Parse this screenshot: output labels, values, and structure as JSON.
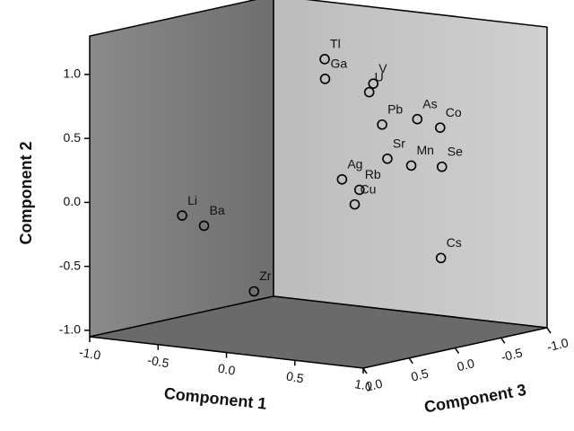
{
  "chart_data": {
    "type": "scatter3d",
    "xlabel": "Component 1",
    "ylabel": "Component 2",
    "zlabel": "Component 3",
    "labels": [
      "Tl",
      "Ga",
      "V",
      "U",
      "Pb",
      "As",
      "Co",
      "Sr",
      "Mn",
      "Se",
      "Ag",
      "Rb",
      "Cu",
      "Cs",
      "Li",
      "Ba",
      "Zr"
    ],
    "x": [
      -0.29,
      -0.22,
      0.2,
      0.17,
      0.13,
      0.32,
      0.42,
      0.37,
      0.41,
      0.5,
      0.24,
      0.3,
      0.4,
      0.56,
      -0.66,
      -0.5,
      0.0
    ],
    "y": [
      0.97,
      0.84,
      0.87,
      0.8,
      0.51,
      0.56,
      0.49,
      0.32,
      0.24,
      0.21,
      0.19,
      0.1,
      0.03,
      -0.48,
      -0.14,
      -0.2,
      -0.62
    ],
    "z": [
      -0.5,
      -0.4,
      -0.3,
      -0.3,
      -0.5,
      -0.6,
      -0.7,
      -0.2,
      -0.4,
      -0.6,
      0.1,
      0.0,
      0.2,
      -0.5,
      0.5,
      0.5,
      0.7
    ],
    "xlim": [
      -1,
      1
    ],
    "ylim": [
      -1.05,
      1.3
    ],
    "zlim": [
      -1,
      1
    ],
    "xticks": [
      {
        "value": -1,
        "label": "-1.0"
      },
      {
        "value": -0.5,
        "label": "-0.5"
      },
      {
        "value": 0,
        "label": "0.0"
      },
      {
        "value": 0.5,
        "label": "0.5"
      },
      {
        "value": 1,
        "label": "1.0"
      }
    ],
    "yticks": [
      {
        "value": -1,
        "label": "-1.0"
      },
      {
        "value": -0.5,
        "label": "-0.5"
      },
      {
        "value": 0,
        "label": "0.0"
      },
      {
        "value": 0.5,
        "label": "0.5"
      },
      {
        "value": 1,
        "label": "1.0"
      }
    ],
    "zticks": [
      {
        "value": 1,
        "label": "1.0"
      },
      {
        "value": 0.5,
        "label": "0.5"
      },
      {
        "value": 0,
        "label": "0.0"
      },
      {
        "value": -0.5,
        "label": "-0.5"
      },
      {
        "value": -1,
        "label": "-1.0"
      }
    ]
  }
}
